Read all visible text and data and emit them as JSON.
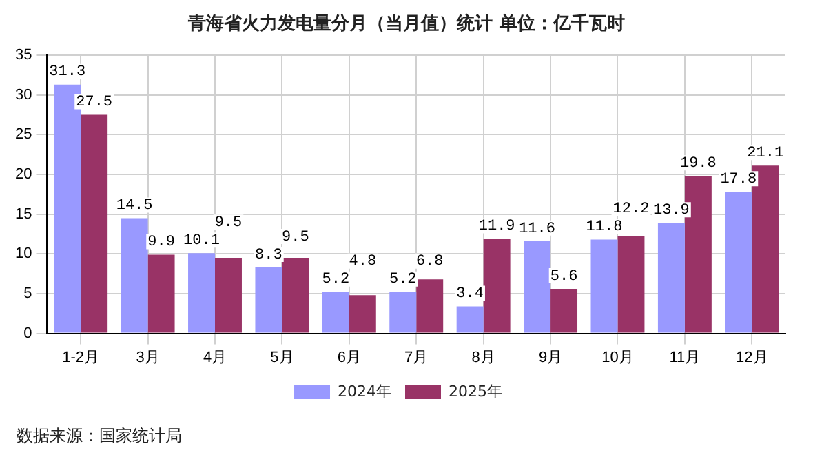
{
  "chart_data": {
    "type": "bar",
    "title": "青海省火力发电量分月（当月值）统计 单位：亿千瓦时",
    "categories": [
      "1-2月",
      "3月",
      "4月",
      "5月",
      "6月",
      "7月",
      "8月",
      "9月",
      "10月",
      "11月",
      "12月"
    ],
    "series": [
      {
        "name": "2024年",
        "color": "#9999ff",
        "values": [
          31.3,
          14.5,
          10.1,
          8.3,
          5.2,
          5.2,
          3.4,
          11.6,
          11.8,
          13.9,
          17.8
        ]
      },
      {
        "name": "2025年",
        "color": "#993366",
        "values": [
          27.5,
          9.9,
          9.5,
          9.5,
          4.8,
          6.8,
          11.9,
          5.6,
          12.2,
          19.8,
          21.1
        ]
      }
    ],
    "ylim": [
      0,
      35
    ],
    "yticks": [
      0,
      5,
      10,
      15,
      20,
      25,
      30,
      35
    ],
    "grid": true,
    "legend": "bottom",
    "data_labels": true,
    "annotations": [
      "数据来源：国家统计局"
    ]
  }
}
